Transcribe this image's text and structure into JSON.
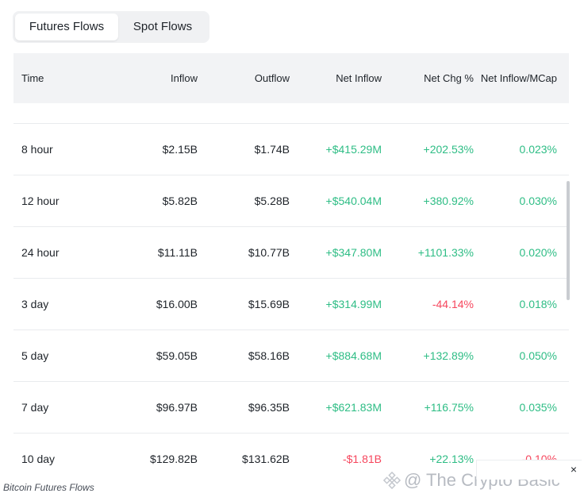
{
  "tabs": [
    {
      "label": "Futures Flows",
      "active": true
    },
    {
      "label": "Spot Flows",
      "active": false
    }
  ],
  "table": {
    "headers": [
      "Time",
      "Inflow",
      "Outflow",
      "Net Inflow",
      "Net Chg %",
      "Net Inflow/MCap"
    ],
    "rows": [
      {
        "time": "8 hour",
        "inflow": "$2.15B",
        "outflow": "$1.74B",
        "net_inflow": "+$415.29M",
        "net_chg": "+202.53%",
        "mcap": "0.023%"
      },
      {
        "time": "12 hour",
        "inflow": "$5.82B",
        "outflow": "$5.28B",
        "net_inflow": "+$540.04M",
        "net_chg": "+380.92%",
        "mcap": "0.030%"
      },
      {
        "time": "24 hour",
        "inflow": "$11.11B",
        "outflow": "$10.77B",
        "net_inflow": "+$347.80M",
        "net_chg": "+1101.33%",
        "mcap": "0.020%"
      },
      {
        "time": "3 day",
        "inflow": "$16.00B",
        "outflow": "$15.69B",
        "net_inflow": "+$314.99M",
        "net_chg": "-44.14%",
        "mcap": "0.018%"
      },
      {
        "time": "5 day",
        "inflow": "$59.05B",
        "outflow": "$58.16B",
        "net_inflow": "+$884.68M",
        "net_chg": "+132.89%",
        "mcap": "0.050%"
      },
      {
        "time": "7 day",
        "inflow": "$96.97B",
        "outflow": "$96.35B",
        "net_inflow": "+$621.83M",
        "net_chg": "+116.75%",
        "mcap": "0.035%"
      },
      {
        "time": "10 day",
        "inflow": "$129.82B",
        "outflow": "$131.62B",
        "net_inflow": "-$1.81B",
        "net_chg": "+22.13%",
        "mcap": "-0.10%"
      }
    ]
  },
  "caption": "Bitcoin Futures Flows",
  "watermark": "@ The Crypto Basic",
  "close_label": "×",
  "colors": {
    "positive": "#2ebd85",
    "negative": "#f6465d",
    "header_bg": "#f2f3f5"
  }
}
